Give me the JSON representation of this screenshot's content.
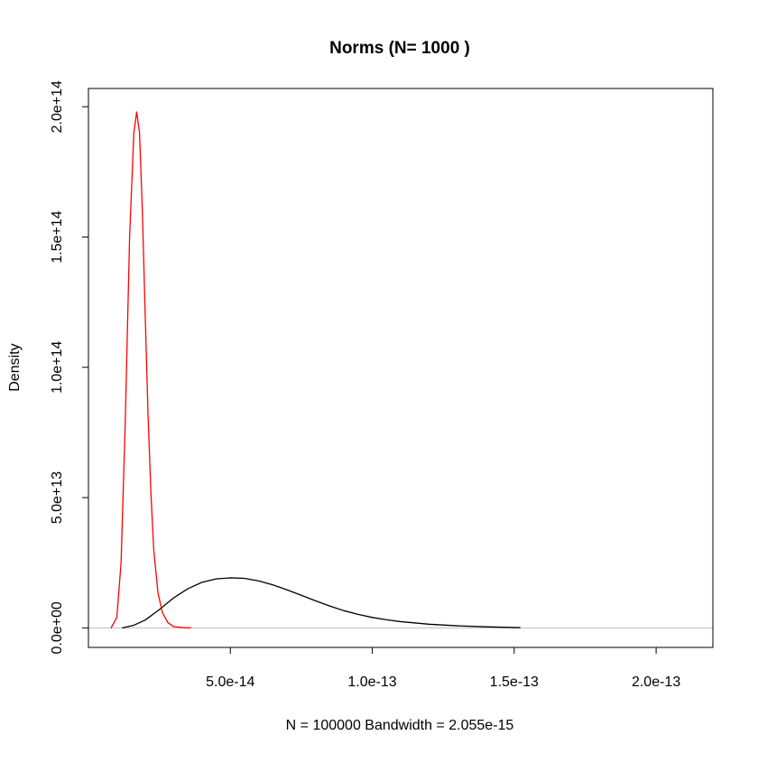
{
  "chart_data": {
    "type": "line",
    "title": "Norms (N= 1000 )",
    "xlabel": "N = 100000    Bandwidth = 2.055e-15",
    "ylabel": "Density",
    "xlim": [
      0,
      2.2e-13
    ],
    "ylim": [
      -7500000000000.0,
      207000000000000.0
    ],
    "x_ticks": [
      {
        "value": 5e-14,
        "label": "5.0e-14"
      },
      {
        "value": 1e-13,
        "label": "1.0e-13"
      },
      {
        "value": 1.5e-13,
        "label": "1.5e-13"
      },
      {
        "value": 2e-13,
        "label": "2.0e-13"
      }
    ],
    "y_ticks": [
      {
        "value": 0,
        "label": "0.0e+00"
      },
      {
        "value": 50000000000000.0,
        "label": "5.0e+13"
      },
      {
        "value": 100000000000000.0,
        "label": "1.0e+14"
      },
      {
        "value": 150000000000000.0,
        "label": "1.5e+14"
      },
      {
        "value": 200000000000000.0,
        "label": "2.0e+14"
      }
    ],
    "baseline": {
      "y": 0,
      "color": "#bebebe"
    },
    "grid": false,
    "series": [
      {
        "color": "#000000",
        "x": [
          1.2e-14,
          1.6e-14,
          2e-14,
          2.5e-14,
          3e-14,
          3.5e-14,
          4e-14,
          4.5e-14,
          5e-14,
          5.5e-14,
          6e-14,
          6.5e-14,
          7e-14,
          7.5e-14,
          8e-14,
          8.5e-14,
          9e-14,
          9.5e-14,
          1e-13,
          1.05e-13,
          1.1e-13,
          1.2e-13,
          1.3e-13,
          1.4e-13,
          1.5e-13,
          1.52e-13
        ],
        "y": [
          0,
          1000000000000.0,
          3000000000000.0,
          7000000000000.0,
          11500000000000.0,
          15000000000000.0,
          17500000000000.0,
          18800000000000.0,
          19200000000000.0,
          19000000000000.0,
          18000000000000.0,
          16500000000000.0,
          14600000000000.0,
          12500000000000.0,
          10400000000000.0,
          8400000000000.0,
          6600000000000.0,
          5200000000000.0,
          4000000000000.0,
          3100000000000.0,
          2400000000000.0,
          1400000000000.0,
          800000000000.0,
          400000000000.0,
          150000000000.0,
          100000000000.0
        ]
      },
      {
        "color": "#ff0000",
        "x": [
          8e-15,
          1e-14,
          1.15e-14,
          1.3e-14,
          1.45e-14,
          1.6e-14,
          1.7e-14,
          1.8e-14,
          1.9e-14,
          2e-14,
          2.1e-14,
          2.2e-14,
          2.3e-14,
          2.45e-14,
          2.6e-14,
          2.8e-14,
          3e-14,
          3.3e-14,
          3.6e-14
        ],
        "y": [
          0,
          4000000000000.0,
          25000000000000.0,
          80000000000000.0,
          150000000000000.0,
          190000000000000.0,
          198000000000000.0,
          190000000000000.0,
          160000000000000.0,
          120000000000000.0,
          82000000000000.0,
          52000000000000.0,
          30000000000000.0,
          13500000000000.0,
          6000000000000.0,
          2000000000000.0,
          500000000000.0,
          100000000000.0,
          0
        ]
      }
    ]
  }
}
